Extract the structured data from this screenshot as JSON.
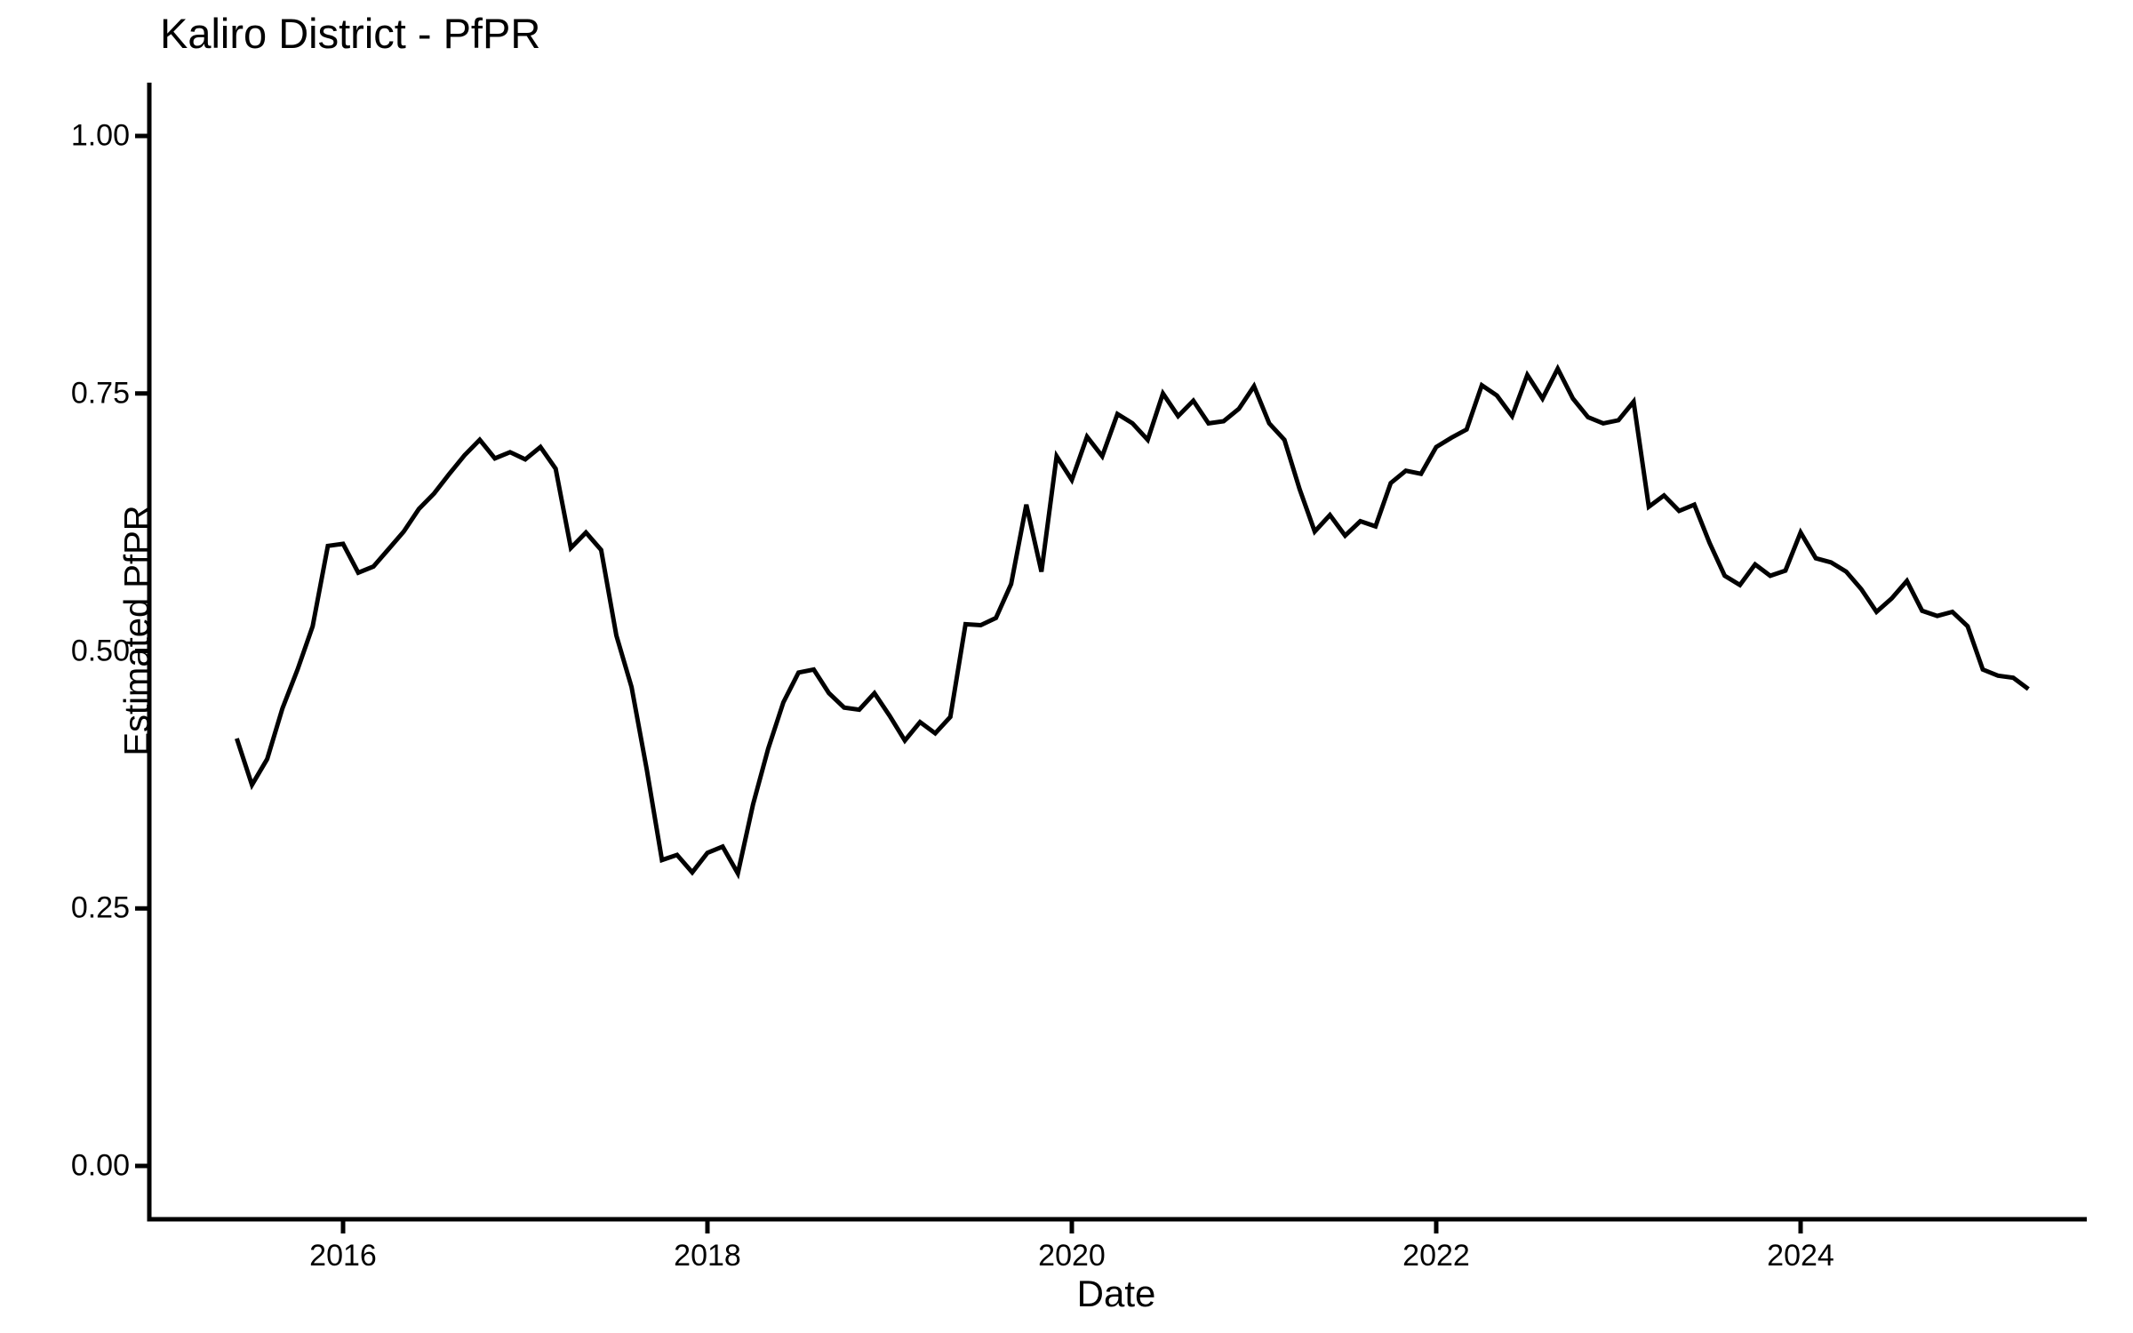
{
  "chart_data": {
    "type": "line",
    "title": "Kaliro District - PfPR",
    "xlabel": "Date",
    "ylabel": "Estimated PfPR",
    "legend": "none",
    "grid": "off",
    "background": "#ffffff",
    "line_color": "#000000",
    "axis_color": "#000000",
    "ylim": [
      0.0,
      1.04
    ],
    "xlim_years": [
      2014.95,
      2025.55
    ],
    "y_ticks": [
      {
        "value": 0.0,
        "label": "0.00"
      },
      {
        "value": 0.25,
        "label": "0.25"
      },
      {
        "value": 0.5,
        "label": "0.50"
      },
      {
        "value": 0.75,
        "label": "0.75"
      },
      {
        "value": 1.0,
        "label": "1.00"
      }
    ],
    "x_ticks": [
      {
        "year": 2016,
        "label": "2016"
      },
      {
        "year": 2018,
        "label": "2018"
      },
      {
        "year": 2020,
        "label": "2020"
      },
      {
        "year": 2022,
        "label": "2022"
      },
      {
        "year": 2024,
        "label": "2024"
      }
    ],
    "series": [
      {
        "name": "Estimated PfPR",
        "frequency": "monthly",
        "start_year": 2015,
        "start_month": 6,
        "values": [
          0.415,
          0.37,
          0.395,
          0.444,
          0.482,
          0.524,
          0.602,
          0.604,
          0.576,
          0.582,
          0.599,
          0.616,
          0.638,
          0.653,
          0.672,
          0.69,
          0.705,
          0.687,
          0.693,
          0.686,
          0.698,
          0.677,
          0.6,
          0.615,
          0.598,
          0.515,
          0.465,
          0.385,
          0.297,
          0.302,
          0.285,
          0.304,
          0.31,
          0.284,
          0.351,
          0.405,
          0.45,
          0.479,
          0.482,
          0.459,
          0.445,
          0.443,
          0.459,
          0.437,
          0.413,
          0.431,
          0.42,
          0.436,
          0.526,
          0.525,
          0.532,
          0.565,
          0.642,
          0.577,
          0.689,
          0.666,
          0.708,
          0.689,
          0.73,
          0.721,
          0.705,
          0.75,
          0.728,
          0.743,
          0.721,
          0.723,
          0.735,
          0.757,
          0.721,
          0.705,
          0.657,
          0.616,
          0.632,
          0.612,
          0.626,
          0.621,
          0.663,
          0.675,
          0.672,
          0.698,
          0.707,
          0.715,
          0.758,
          0.748,
          0.728,
          0.768,
          0.745,
          0.774,
          0.745,
          0.727,
          0.721,
          0.724,
          0.742,
          0.64,
          0.651,
          0.636,
          0.642,
          0.605,
          0.573,
          0.564,
          0.584,
          0.573,
          0.578,
          0.615,
          0.59,
          0.586,
          0.577,
          0.56,
          0.538,
          0.551,
          0.568,
          0.539,
          0.534,
          0.538,
          0.524,
          0.482,
          0.476,
          0.474,
          0.463
        ]
      }
    ]
  }
}
